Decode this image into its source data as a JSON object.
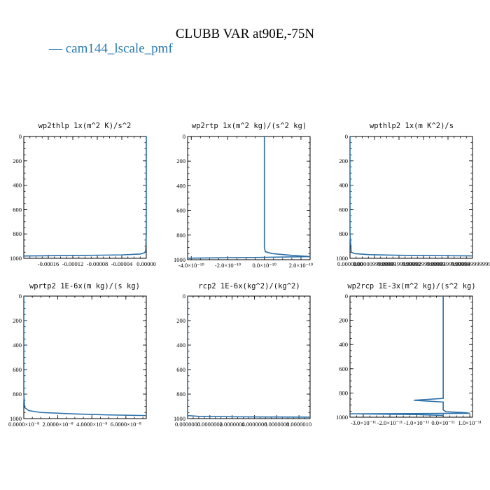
{
  "figure": {
    "title": "CLUBB VAR at90E,-75N",
    "legend": [
      {
        "label": "— cam144_lscale_pmf",
        "color": "#2a7ab0"
      }
    ]
  },
  "chart_data": [
    {
      "type": "line",
      "title": "wp2thlp   1x(m^2 K)/s^2",
      "xlim": [
        -0.0002,
        0.0
      ],
      "ylim": [
        1000,
        0
      ],
      "x_ticks": [
        "-0.00016",
        "-0.00012",
        "-0.00008",
        "-0.00004",
        "0.00000"
      ],
      "x_tick_values": [
        -0.00016,
        -0.00012,
        -8e-05,
        -4e-05,
        0.0
      ],
      "y_ticks": [
        "0",
        "200",
        "400",
        "600",
        "800",
        "1000"
      ],
      "series": [
        {
          "color": "#2a6fa8",
          "x": [
            0.0,
            0.0,
            0.0,
            0.0,
            0.0,
            -1e-06,
            -3e-06,
            -1e-05,
            -4e-05,
            -0.0001,
            -0.00016,
            -0.0002
          ],
          "y": [
            0,
            200,
            400,
            600,
            800,
            940,
            955,
            965,
            972,
            976,
            979,
            981
          ]
        }
      ]
    },
    {
      "type": "line",
      "title": "wp2rtp   1x(m^2 kg)/(s^2 kg)",
      "xlim": [
        -4.2e-10,
        2.5e-10
      ],
      "ylim": [
        1000,
        0
      ],
      "x_ticks": [
        "-4.0×10⁻¹⁰",
        "-2.0×10⁻¹⁰",
        "0.0×10⁻¹⁰",
        "2.0×10⁻¹⁰"
      ],
      "x_tick_values": [
        -4e-10,
        -2e-10,
        0.0,
        2e-10
      ],
      "y_ticks": [
        "0",
        "200",
        "400",
        "600",
        "800",
        "1000"
      ],
      "series": [
        {
          "color": "#2a6fa8",
          "x": [
            0.0,
            0.0,
            0.0,
            0.0,
            0.0,
            0.0,
            5e-12,
            4e-11,
            1.5e-10,
            2.5e-10,
            -5e-11,
            -3.5e-10,
            -4.2e-10
          ],
          "y": [
            0,
            200,
            400,
            600,
            800,
            900,
            935,
            950,
            965,
            975,
            982,
            986,
            988
          ]
        }
      ]
    },
    {
      "type": "line",
      "title": "wpthlp2   1x(m K^2)/s",
      "xlim": [
        0.0,
        5e-05
      ],
      "ylim": [
        1000,
        0
      ],
      "x_ticks": [
        "0.0000000",
        "0.0000099999999",
        "0.0000199999999",
        "0.0000299999999",
        "0.0000399999999",
        "0.0000499999997"
      ],
      "x_tick_values": [
        0.0,
        1e-05,
        2e-05,
        3e-05,
        4e-05,
        5e-05
      ],
      "y_ticks": [
        "0",
        "200",
        "400",
        "600",
        "800",
        "1000"
      ],
      "series": [
        {
          "color": "#2a6fa8",
          "x": [
            0.0,
            0.0,
            0.0,
            0.0,
            0.0,
            5e-07,
            2e-06,
            8e-06,
            2e-05,
            3.5e-05,
            5e-05
          ],
          "y": [
            0,
            200,
            400,
            600,
            800,
            950,
            962,
            970,
            975,
            978,
            980
          ]
        }
      ]
    },
    {
      "type": "line",
      "title": "wprtp2   1E-6x(m kg)/(s kg)",
      "xlim": [
        0.0,
        7.2e-07
      ],
      "ylim": [
        1000,
        0
      ],
      "x_ticks": [
        "0.0000×10⁻⁸",
        "2.0000×10⁻⁸",
        "4.0000×10⁻⁸",
        "6.0000×10⁻⁸"
      ],
      "x_tick_values": [
        0.0,
        2e-07,
        4e-07,
        6e-07
      ],
      "y_ticks": [
        "0",
        "200",
        "400",
        "600",
        "800",
        "1000"
      ],
      "series": [
        {
          "color": "#2a6fa8",
          "x": [
            0.0,
            0.0,
            0.0,
            0.0,
            0.0,
            5e-09,
            3e-08,
            1e-07,
            3e-07,
            5e-07,
            7.2e-07
          ],
          "y": [
            0,
            200,
            400,
            600,
            800,
            910,
            935,
            950,
            962,
            970,
            975
          ]
        }
      ]
    },
    {
      "type": "line",
      "title": "rcp2   1E-6x(kg^2)/(kg^2)",
      "xlim": [
        0.0,
        1.1e-05
      ],
      "ylim": [
        1000,
        0
      ],
      "x_ticks": [
        "0.0000000",
        "0.0000002",
        "0.0000004",
        "0.0000006",
        "0.0000008",
        "0.0000010"
      ],
      "x_tick_values": [
        0.0,
        2e-06,
        4e-06,
        6e-06,
        8e-06,
        1e-05
      ],
      "y_ticks": [
        "0",
        "200",
        "400",
        "600",
        "800",
        "1000"
      ],
      "series": [
        {
          "color": "#2a6fa8",
          "x": [
            0.0,
            0.0,
            0.0,
            0.0,
            0.0,
            0.0,
            1e-06,
            4e-06,
            8e-06,
            1.1e-05
          ],
          "y": [
            0,
            200,
            400,
            600,
            800,
            975,
            982,
            985,
            987,
            988
          ]
        }
      ]
    },
    {
      "type": "line",
      "title": "wp2rcp   1E-3x(m^2 kg)/(s^2 kg)",
      "xlim": [
        -3.5e-11,
        1.1e-11
      ],
      "ylim": [
        1000,
        0
      ],
      "x_ticks": [
        "-3.0×10⁻¹¹",
        "-2.0×10⁻¹¹",
        "-1.0×10⁻¹¹",
        "0.0×10⁻¹¹",
        "1.0×10⁻¹¹"
      ],
      "x_tick_values": [
        -3e-11,
        -2e-11,
        -1e-11,
        0.0,
        1e-11
      ],
      "y_ticks": [
        "0",
        "200",
        "400",
        "600",
        "800",
        "1000"
      ],
      "series": [
        {
          "color": "#2a6fa8",
          "x": [
            0.0,
            0.0,
            0.0,
            0.0,
            0.0,
            -1.1e-11,
            0.0,
            0.0,
            1e-12,
            8e-12,
            1e-11,
            -3.5e-11,
            -1e-11,
            0.0
          ],
          "y": [
            0,
            200,
            400,
            600,
            845,
            860,
            875,
            940,
            955,
            962,
            968,
            972,
            978,
            985
          ]
        }
      ]
    }
  ]
}
